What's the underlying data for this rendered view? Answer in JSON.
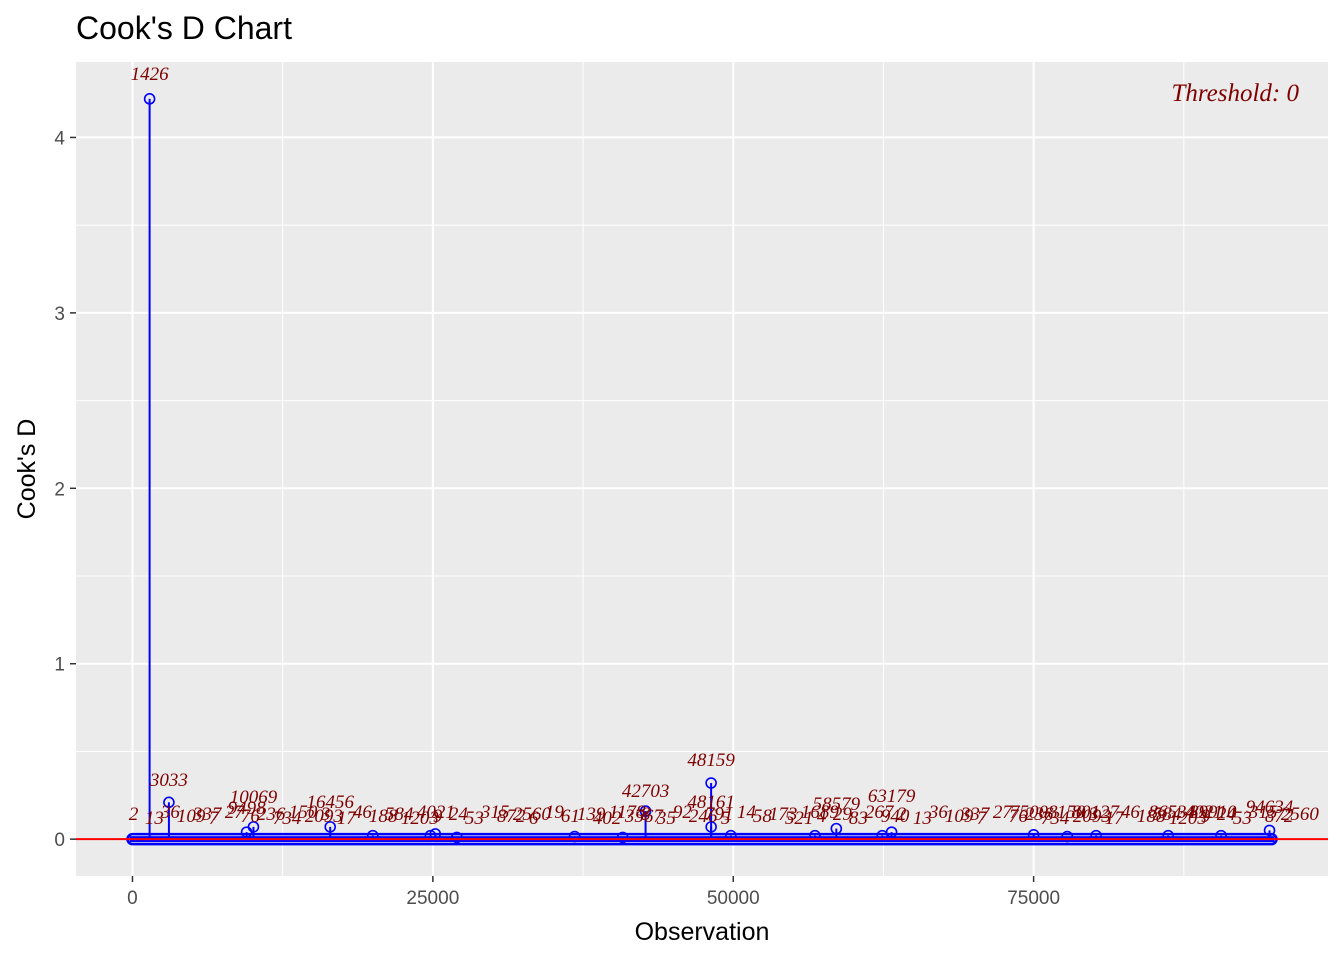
{
  "chart_data": {
    "type": "scatter",
    "title": "Cook's D Chart",
    "xlabel": "Observation",
    "ylabel": "Cook's D",
    "xlim": [
      -4700,
      99500
    ],
    "ylim": [
      -0.21,
      4.43
    ],
    "x_ticks": [
      0,
      25000,
      50000,
      75000
    ],
    "x_tick_labels": [
      "0",
      "25000",
      "50000",
      "75000"
    ],
    "y_ticks": [
      0,
      1,
      2,
      3,
      4
    ],
    "y_tick_labels": [
      "0",
      "1",
      "2",
      "3",
      "4"
    ],
    "x_minor_ticks": [
      12500,
      37500,
      62500,
      87500
    ],
    "y_minor_ticks": [
      0.5,
      1.5,
      2.5,
      3.5
    ],
    "grid": true,
    "threshold": {
      "value": 0,
      "label": "Threshold: 0",
      "color": "#ff0000"
    },
    "series_color": "#0000ff",
    "label_color": "#7f0000",
    "n_observations": 94800,
    "points": [
      {
        "x": 1426,
        "y": 4.22,
        "label": "1426"
      },
      {
        "x": 3033,
        "y": 0.21,
        "label": "3033"
      },
      {
        "x": 9498,
        "y": 0.04,
        "label": "9498"
      },
      {
        "x": 10069,
        "y": 0.07,
        "label": "10069"
      },
      {
        "x": 16456,
        "y": 0.07,
        "label": "16456"
      },
      {
        "x": 42703,
        "y": 0.16,
        "label": "42703"
      },
      {
        "x": 48159,
        "y": 0.32,
        "label": "48159"
      },
      {
        "x": 48161,
        "y": 0.07,
        "label": "48161"
      },
      {
        "x": 58579,
        "y": 0.06,
        "label": "58579"
      },
      {
        "x": 63179,
        "y": 0.04,
        "label": "63179"
      },
      {
        "x": 94634,
        "y": 0.05,
        "label": "94634"
      }
    ],
    "small_points": [
      {
        "x": 20000,
        "y": 0.02
      },
      {
        "x": 24800,
        "y": 0.02
      },
      {
        "x": 25200,
        "y": 0.03
      },
      {
        "x": 27000,
        "y": 0.01
      },
      {
        "x": 36800,
        "y": 0.015
      },
      {
        "x": 40800,
        "y": 0.01
      },
      {
        "x": 49800,
        "y": 0.02
      },
      {
        "x": 56800,
        "y": 0.02
      },
      {
        "x": 62400,
        "y": 0.02
      },
      {
        "x": 75000,
        "y": 0.025
      },
      {
        "x": 77800,
        "y": 0.015
      },
      {
        "x": 80200,
        "y": 0.02
      },
      {
        "x": 86200,
        "y": 0.02
      },
      {
        "x": 90600,
        "y": 0.02
      }
    ],
    "band_labels": [
      "2",
      "13",
      "36",
      "109",
      "337",
      "7",
      "27",
      "76",
      "236",
      "734",
      "150",
      "2093",
      "3",
      "17",
      "46",
      "188",
      "584",
      "1203",
      "4021",
      "9",
      "24",
      "53",
      "315",
      "872",
      "2560",
      "6",
      "19",
      "61",
      "139",
      "402",
      "1178",
      "3567",
      "8",
      "35",
      "92",
      "246",
      "791",
      "5",
      "14",
      "58",
      "173",
      "521",
      "1689",
      "4",
      "29",
      "83",
      "267",
      "940"
    ],
    "labels_upper_line": [
      "1426",
      "3033",
      "10069",
      "16456",
      "42703",
      "48159",
      "63179"
    ],
    "labels_lower_line": [
      "9498",
      "48161",
      "58579",
      "75008",
      "80127",
      "86534",
      "89910",
      "94634"
    ]
  }
}
